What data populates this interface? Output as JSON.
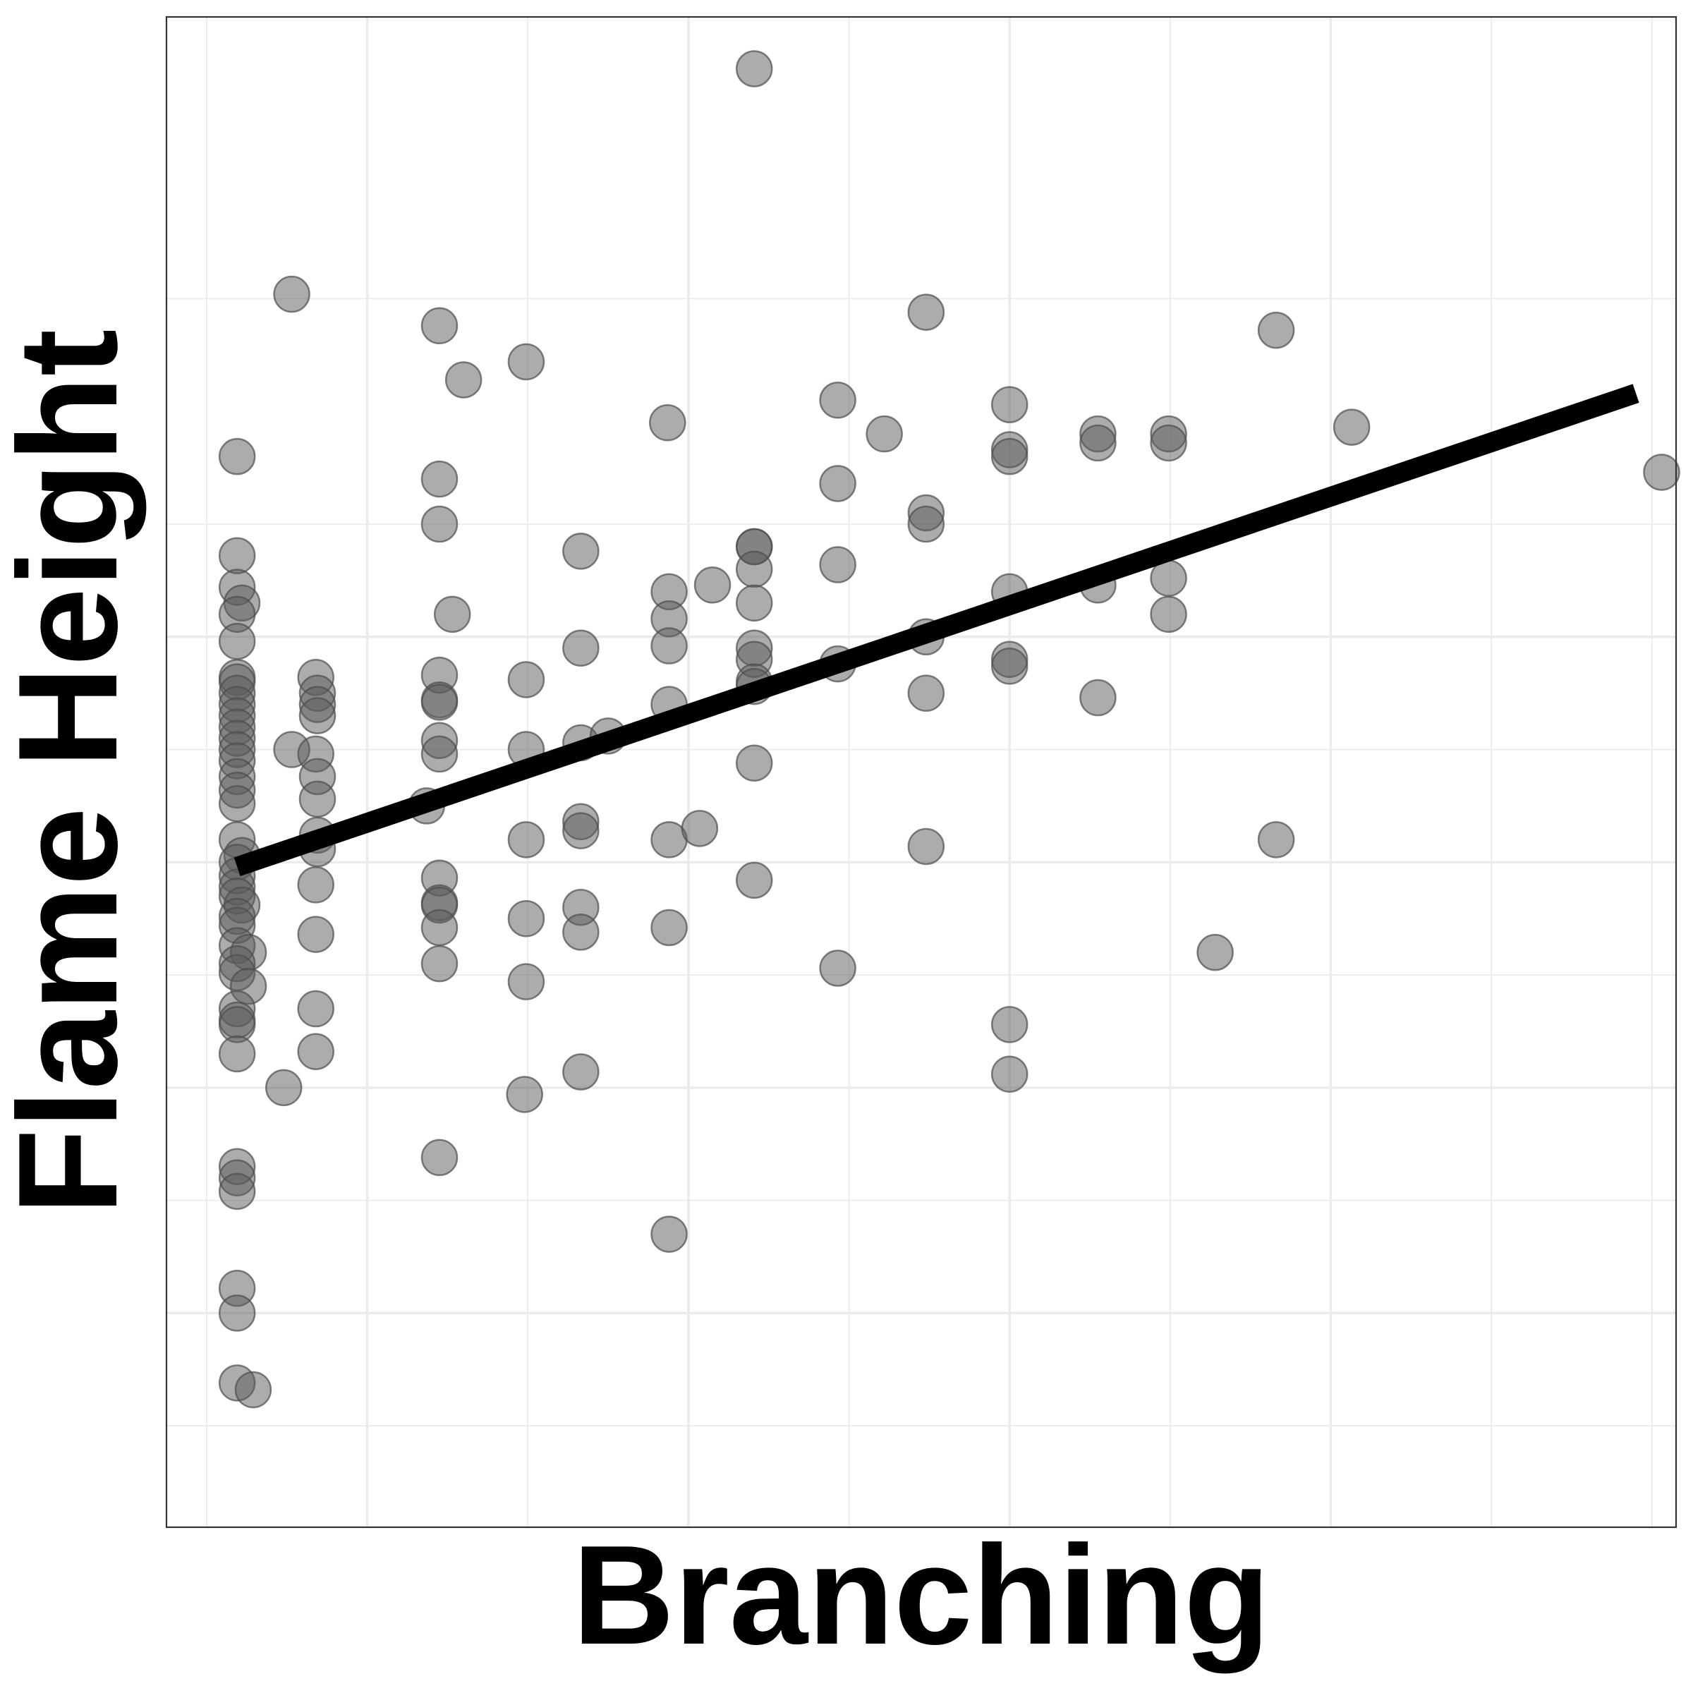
{
  "chart_data": {
    "type": "scatter",
    "xlabel": "Branching",
    "ylabel": "Flame Height",
    "xlim": [
      -0.25,
      9.15
    ],
    "ylim": [
      -0.45,
      6.25
    ],
    "grid": true,
    "legend": "none",
    "colors": {
      "point_fill": "#595959",
      "trend_line": "#000000",
      "grid": "#ebebeb",
      "border": "#333333"
    },
    "x_major_ticks": [
      1,
      3,
      5,
      7
    ],
    "x_minor_ticks": [
      0,
      2,
      4,
      6,
      8,
      9
    ],
    "y_major_ticks": [
      0.5,
      1.5,
      2.5,
      3.5
    ],
    "y_minor_ticks": [
      0,
      1,
      2,
      3,
      4,
      5
    ],
    "series": [
      {
        "points": [
          [
            0.19,
            4.3
          ],
          [
            0.19,
            3.86
          ],
          [
            0.19,
            3.72
          ],
          [
            0.22,
            3.65
          ],
          [
            0.19,
            3.6
          ],
          [
            0.19,
            3.48
          ],
          [
            0.19,
            3.32
          ],
          [
            0.19,
            3.3
          ],
          [
            0.19,
            3.25
          ],
          [
            0.19,
            3.2
          ],
          [
            0.19,
            3.15
          ],
          [
            0.19,
            3.1
          ],
          [
            0.19,
            3.05
          ],
          [
            0.19,
            3.0
          ],
          [
            0.19,
            2.95
          ],
          [
            0.19,
            2.88
          ],
          [
            0.19,
            2.82
          ],
          [
            0.19,
            2.76
          ],
          [
            0.19,
            2.6
          ],
          [
            0.22,
            2.53
          ],
          [
            0.19,
            2.5
          ],
          [
            0.19,
            2.44
          ],
          [
            0.19,
            2.39
          ],
          [
            0.19,
            2.35
          ],
          [
            0.22,
            2.31
          ],
          [
            0.19,
            2.26
          ],
          [
            0.19,
            2.22
          ],
          [
            0.19,
            2.13
          ],
          [
            0.26,
            2.1
          ],
          [
            0.19,
            2.05
          ],
          [
            0.19,
            2.01
          ],
          [
            0.26,
            1.95
          ],
          [
            0.19,
            1.85
          ],
          [
            0.19,
            1.8
          ],
          [
            0.19,
            1.78
          ],
          [
            0.19,
            1.65
          ],
          [
            0.19,
            1.15
          ],
          [
            0.19,
            1.1
          ],
          [
            0.19,
            1.04
          ],
          [
            0.19,
            0.61
          ],
          [
            0.19,
            0.5
          ],
          [
            0.19,
            0.19
          ],
          [
            0.29,
            0.16
          ],
          [
            0.53,
            5.02
          ],
          [
            0.53,
            3.0
          ],
          [
            0.48,
            1.5
          ],
          [
            0.68,
            3.32
          ],
          [
            0.69,
            3.25
          ],
          [
            0.69,
            3.2
          ],
          [
            0.69,
            3.15
          ],
          [
            0.68,
            2.98
          ],
          [
            0.69,
            2.88
          ],
          [
            0.69,
            2.78
          ],
          [
            0.69,
            2.62
          ],
          [
            0.69,
            2.56
          ],
          [
            0.68,
            2.4
          ],
          [
            0.68,
            2.18
          ],
          [
            0.68,
            1.85
          ],
          [
            0.68,
            1.66
          ],
          [
            1.45,
            4.88
          ],
          [
            1.45,
            4.2
          ],
          [
            1.45,
            4.0
          ],
          [
            1.53,
            3.6
          ],
          [
            1.45,
            3.33
          ],
          [
            1.45,
            3.22
          ],
          [
            1.45,
            3.21
          ],
          [
            1.45,
            3.04
          ],
          [
            1.45,
            2.98
          ],
          [
            1.37,
            2.75
          ],
          [
            1.45,
            2.43
          ],
          [
            1.45,
            2.32
          ],
          [
            1.45,
            2.31
          ],
          [
            1.45,
            2.21
          ],
          [
            1.45,
            2.05
          ],
          [
            1.45,
            1.19
          ],
          [
            1.6,
            4.64
          ],
          [
            1.99,
            4.72
          ],
          [
            1.99,
            3.31
          ],
          [
            1.99,
            3.0
          ],
          [
            1.99,
            2.6
          ],
          [
            1.99,
            2.25
          ],
          [
            1.99,
            1.97
          ],
          [
            1.98,
            1.47
          ],
          [
            2.33,
            3.88
          ],
          [
            2.33,
            3.45
          ],
          [
            2.33,
            3.03
          ],
          [
            2.5,
            3.06
          ],
          [
            2.33,
            2.68
          ],
          [
            2.33,
            2.64
          ],
          [
            2.33,
            2.3
          ],
          [
            2.33,
            2.19
          ],
          [
            2.33,
            1.57
          ],
          [
            2.87,
            4.45
          ],
          [
            2.88,
            3.7
          ],
          [
            2.88,
            3.58
          ],
          [
            2.88,
            3.46
          ],
          [
            2.88,
            3.2
          ],
          [
            2.88,
            2.6
          ],
          [
            2.88,
            2.21
          ],
          [
            3.07,
            2.65
          ],
          [
            3.15,
            3.73
          ],
          [
            2.88,
            0.85
          ],
          [
            3.41,
            6.02
          ],
          [
            3.41,
            3.9
          ],
          [
            3.41,
            3.9
          ],
          [
            3.41,
            3.8
          ],
          [
            3.41,
            3.65
          ],
          [
            3.41,
            3.45
          ],
          [
            3.41,
            3.4
          ],
          [
            3.41,
            3.3
          ],
          [
            3.41,
            3.28
          ],
          [
            3.41,
            2.94
          ],
          [
            3.41,
            2.42
          ],
          [
            3.93,
            4.55
          ],
          [
            3.93,
            4.18
          ],
          [
            3.93,
            3.82
          ],
          [
            3.93,
            3.38
          ],
          [
            3.93,
            2.03
          ],
          [
            4.22,
            4.4
          ],
          [
            4.48,
            4.94
          ],
          [
            4.48,
            4.05
          ],
          [
            4.48,
            4.0
          ],
          [
            4.48,
            3.5
          ],
          [
            4.48,
            3.25
          ],
          [
            4.48,
            2.57
          ],
          [
            5.0,
            4.53
          ],
          [
            5.0,
            4.33
          ],
          [
            5.0,
            4.3
          ],
          [
            5.0,
            3.7
          ],
          [
            5.0,
            3.4
          ],
          [
            5.0,
            3.37
          ],
          [
            5.0,
            1.78
          ],
          [
            5.0,
            1.56
          ],
          [
            5.55,
            4.4
          ],
          [
            5.55,
            4.36
          ],
          [
            5.55,
            3.73
          ],
          [
            5.55,
            3.23
          ],
          [
            5.99,
            4.4
          ],
          [
            5.99,
            4.36
          ],
          [
            5.99,
            3.76
          ],
          [
            5.99,
            3.6
          ],
          [
            6.28,
            2.1
          ],
          [
            6.66,
            4.86
          ],
          [
            6.66,
            2.6
          ],
          [
            7.13,
            4.43
          ],
          [
            9.06,
            4.23
          ]
        ]
      }
    ],
    "trend_line": {
      "x": [
        0.19,
        8.9
      ],
      "y": [
        2.48,
        4.58
      ]
    }
  }
}
